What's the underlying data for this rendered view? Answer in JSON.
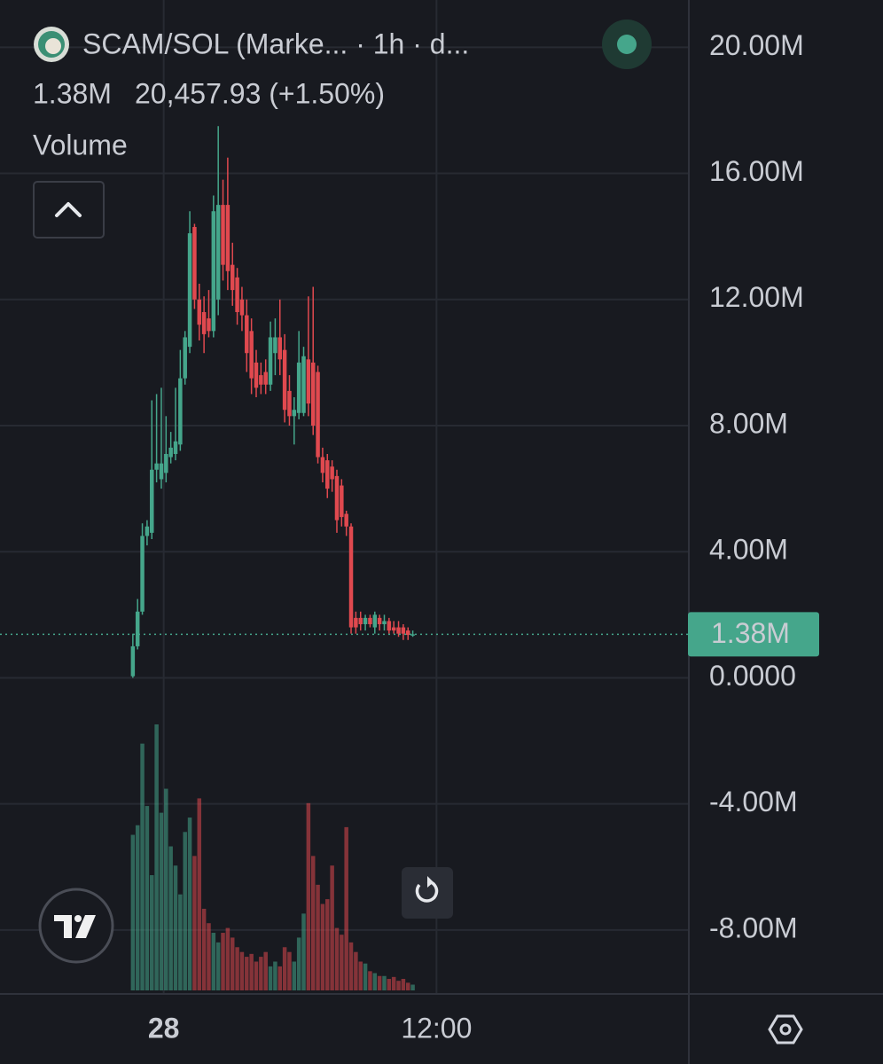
{
  "chart_data": {
    "type": "candlestick",
    "title": "SCAM/SOL (Marke... · 1h · d...",
    "legend_value": "1.38M",
    "change": "20,457.93 (+1.50%)",
    "volume_label": "Volume",
    "up_color": "#45a68b",
    "down_color": "#e0494f",
    "grid": true,
    "xlim": [
      -28,
      117
    ],
    "xticks": [
      {
        "value": 6.5,
        "label": "28"
      },
      {
        "value": 64,
        "label": "12:00"
      }
    ],
    "ylim": [
      -10,
      21.5
    ],
    "yticks": [
      {
        "value": 20,
        "label": "20.00M"
      },
      {
        "value": 16,
        "label": "16.00M"
      },
      {
        "value": 12,
        "label": "12.00M"
      },
      {
        "value": 8,
        "label": "8.00M"
      },
      {
        "value": 4,
        "label": "4.00M"
      },
      {
        "value": 0,
        "label": "0.0000"
      },
      {
        "value": -4,
        "label": "-4.00M"
      },
      {
        "value": -8,
        "label": "-8.00M"
      }
    ],
    "price_line": {
      "value": 1.38,
      "label": "1.38M"
    },
    "open": [
      0.05,
      1.0,
      2.1,
      4.5,
      4.6,
      6.6,
      6.3,
      6.5,
      7.0,
      7.1,
      7.4,
      9.5,
      10.5,
      14.3,
      12.0,
      11.6,
      11.4,
      11.0,
      12.0,
      15.0,
      15.0,
      13.1,
      12.7,
      12.0,
      11.5,
      11.0,
      10.0,
      9.6,
      9.7,
      9.3,
      10.3,
      10.8,
      10.4,
      9.1,
      8.3,
      8.4,
      8.4,
      10.1,
      10.0,
      9.7,
      7.0,
      6.9,
      6.7,
      6.4,
      6.1,
      5.2,
      4.8,
      1.9,
      1.9,
      1.7,
      1.9,
      1.6,
      1.9,
      1.7,
      1.8,
      1.6,
      1.6,
      1.6,
      1.5,
      1.36
    ],
    "high": [
      1.4,
      2.5,
      4.9,
      5.0,
      8.8,
      9.0,
      9.2,
      8.3,
      7.8,
      9.2,
      10.4,
      11.0,
      14.8,
      14.4,
      12.5,
      12.1,
      12.3,
      15.3,
      17.5,
      15.8,
      16.5,
      13.8,
      13.0,
      12.4,
      12.0,
      11.4,
      10.4,
      10.0,
      10.1,
      11.3,
      11.4,
      12.0,
      10.9,
      9.6,
      8.9,
      11.0,
      10.5,
      12.1,
      12.4,
      9.9,
      7.3,
      7.1,
      6.9,
      6.6,
      6.3,
      5.3,
      4.9,
      2.1,
      2.1,
      2.0,
      2.0,
      2.1,
      2.0,
      2.0,
      1.9,
      1.8,
      1.8,
      1.7,
      1.6,
      1.5
    ],
    "low": [
      0,
      0.9,
      2.0,
      4.2,
      4.4,
      6.2,
      6.0,
      6.2,
      6.8,
      6.9,
      7.2,
      9.3,
      10.3,
      11.7,
      10.7,
      10.3,
      10.8,
      10.8,
      11.5,
      12.6,
      12.3,
      11.8,
      11.2,
      11.0,
      9.7,
      9.0,
      8.9,
      9.0,
      9.0,
      9.1,
      9.6,
      9.6,
      8.1,
      8.0,
      7.4,
      8.2,
      8.3,
      8.3,
      7.7,
      6.8,
      6.2,
      5.7,
      5.9,
      4.6,
      4.8,
      4.5,
      1.4,
      1.4,
      1.5,
      1.5,
      1.6,
      1.4,
      1.5,
      1.5,
      1.4,
      1.4,
      1.3,
      1.2,
      1.2,
      1.3
    ],
    "close": [
      1.0,
      2.1,
      4.5,
      4.8,
      6.6,
      6.8,
      6.8,
      7.1,
      7.3,
      7.5,
      9.5,
      10.8,
      14.1,
      12.0,
      11.2,
      10.9,
      11.0,
      14.8,
      15.0,
      13.1,
      12.9,
      12.3,
      11.6,
      11.5,
      10.3,
      9.5,
      9.2,
      9.3,
      9.3,
      10.8,
      10.8,
      10.1,
      8.5,
      8.3,
      8.5,
      10.0,
      10.2,
      8.7,
      8.0,
      7.0,
      6.5,
      6.0,
      6.3,
      5.0,
      5.1,
      4.8,
      1.6,
      1.6,
      1.7,
      1.9,
      1.7,
      2.0,
      1.7,
      1.8,
      1.5,
      1.5,
      1.4,
      1.4,
      1.36,
      1.38
    ],
    "volume": [
      162,
      172,
      257,
      192,
      120,
      277,
      185,
      210,
      150,
      130,
      100,
      165,
      180,
      140,
      200,
      85,
      70,
      60,
      50,
      60,
      65,
      55,
      45,
      40,
      35,
      38,
      30,
      35,
      40,
      25,
      30,
      25,
      45,
      40,
      30,
      55,
      80,
      195,
      140,
      110,
      90,
      95,
      130,
      65,
      58,
      170,
      50,
      40,
      30,
      28,
      20,
      18,
      15,
      15,
      12,
      14,
      10,
      12,
      8,
      6
    ]
  }
}
